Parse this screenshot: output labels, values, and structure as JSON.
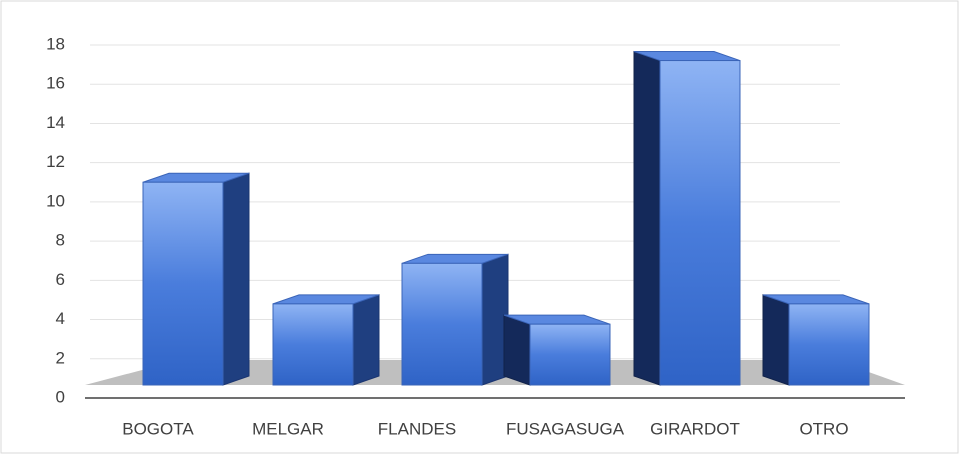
{
  "chart_data": {
    "type": "bar3d",
    "categories": [
      "BOGOTA",
      "MELGAR",
      "FLANDES",
      "FUSAGASUGA",
      "GIRARDOT",
      "OTRO"
    ],
    "values": [
      10,
      4,
      6,
      3,
      16,
      4
    ],
    "color": "#4472c4",
    "ylim": [
      0,
      18
    ],
    "yticks": [
      0,
      2,
      4,
      6,
      8,
      10,
      12,
      14,
      16,
      18
    ],
    "grid": true
  }
}
